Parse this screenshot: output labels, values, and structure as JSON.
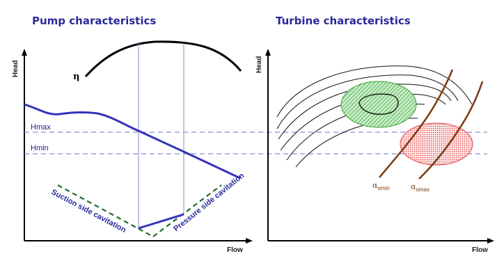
{
  "left_panel": {
    "title": "Pump characteristics",
    "y_axis_label": "Head",
    "x_axis_label": "Flow",
    "efficiency_symbol": "η",
    "hmax_label": "Hmax",
    "hmin_label": "Hmin",
    "suction_label": "Suction side cavitation",
    "pressure_label": "Pressure side cavitation"
  },
  "right_panel": {
    "title": "Turbine characteristics",
    "y_axis_label": "Head",
    "x_axis_label": "Flow",
    "alpha_min_symbol": "α",
    "alpha_min_sub": "omin",
    "alpha_max_symbol": "α",
    "alpha_max_sub": "omax"
  },
  "colors": {
    "title": "#2a2a9a",
    "pump_curve": "#3333bb",
    "dashed_limit": "#8a8ad8",
    "cavitation": "#1f6b2a",
    "efficiency_zone": "#33bb33",
    "cavitation_zone": "#ee4444",
    "guide_vane": "#7a3a10"
  }
}
